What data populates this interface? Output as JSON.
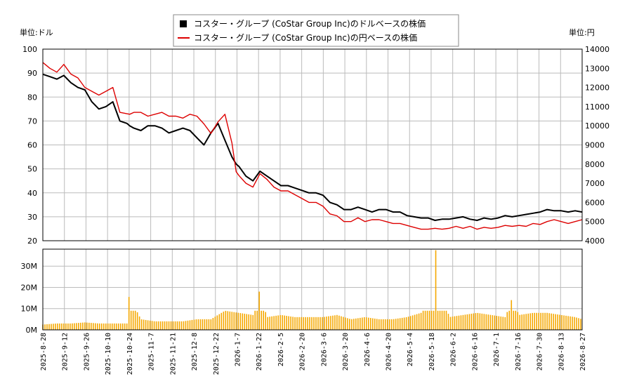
{
  "chart_data": {
    "type": "line",
    "legend": {
      "placement": "top-center",
      "usd_label": "コスター・グループ (CoStar Group Inc)のドルベースの株価",
      "jpy_label": "コスター・グループ (CoStar Group Inc)の円ベースの株価"
    },
    "left_unit_label": "単位:ドル",
    "right_unit_label": "単位:円",
    "price_ylim_usd": [
      20,
      100
    ],
    "price_ylim_jpy": [
      4000,
      14000
    ],
    "price_ticks_usd": [
      "20",
      "30",
      "40",
      "50",
      "60",
      "70",
      "80",
      "90",
      "100"
    ],
    "price_ticks_jpy": [
      "4000",
      "5000",
      "6000",
      "7000",
      "8000",
      "9000",
      "10000",
      "11000",
      "12000",
      "13000",
      "14000"
    ],
    "volume_ylim": [
      0,
      38
    ],
    "volume_ticks": [
      "0M",
      "10M",
      "20M",
      "30M"
    ],
    "x_tick_labels": [
      "2025-8-28",
      "2025-9-12",
      "2025-9-26",
      "2025-10-10",
      "2025-10-24",
      "2025-11-7",
      "2025-11-21",
      "2025-12-8",
      "2025-12-22",
      "2026-1-7",
      "2026-1-22",
      "2026-2-5",
      "2026-2-20",
      "2026-3-6",
      "2026-3-20",
      "2026-4-6",
      "2026-4-20",
      "2026-5-4",
      "2026-5-18",
      "2026-6-2",
      "2026-6-16",
      "2026-7-1",
      "2026-7-16",
      "2026-7-30",
      "2026-8-13",
      "2026-8-27"
    ],
    "grid": true,
    "colors": {
      "usd": "#000000",
      "jpy": "#dd0000",
      "volume": "#f5a800",
      "grid": "#bbbbbb"
    },
    "series": [
      {
        "key": "usd",
        "x": [
          0,
          5,
          10,
          15,
          20,
          25,
          30,
          35,
          40,
          45,
          50,
          55,
          60,
          62,
          65,
          70,
          75,
          80,
          85,
          90,
          95,
          100,
          105,
          110,
          115,
          120,
          125,
          130,
          135,
          138,
          140,
          145,
          150,
          155,
          160,
          165,
          170,
          175,
          180,
          185,
          190,
          195,
          200,
          205,
          210,
          215,
          220,
          225,
          230,
          235,
          240,
          245,
          250,
          255,
          260,
          265,
          270,
          275,
          280,
          285,
          290,
          295,
          300,
          305,
          310,
          315,
          320,
          325,
          330,
          335,
          340,
          345,
          350,
          355,
          360,
          365,
          370,
          375,
          380,
          385
        ],
        "values": [
          89.5,
          88.5,
          87.5,
          89,
          86,
          84,
          83,
          78,
          75,
          76,
          78,
          70,
          69,
          68,
          67,
          66,
          68,
          68,
          67,
          65,
          66,
          67,
          66,
          63,
          60,
          65,
          69,
          62,
          55,
          52,
          51,
          47,
          45,
          49,
          47,
          45,
          43,
          43,
          42,
          41,
          40,
          40,
          39,
          36,
          35,
          33,
          33,
          34,
          33,
          32,
          33,
          33,
          32,
          32,
          30.5,
          30,
          29.5,
          29.5,
          28.5,
          29,
          29,
          29.5,
          30,
          29,
          28.5,
          29.5,
          29,
          29.5,
          30.5,
          30,
          30.5,
          31,
          31.5,
          32,
          33,
          32.5,
          32.5,
          32,
          32.5,
          32
        ]
      },
      {
        "key": "jpy",
        "x": [
          0,
          5,
          10,
          15,
          20,
          25,
          30,
          35,
          40,
          45,
          50,
          55,
          62,
          65,
          70,
          75,
          80,
          85,
          90,
          95,
          100,
          105,
          110,
          115,
          120,
          125,
          130,
          135,
          138,
          140,
          145,
          150,
          155,
          160,
          165,
          170,
          175,
          180,
          185,
          190,
          195,
          200,
          205,
          210,
          215,
          220,
          225,
          230,
          235,
          240,
          245,
          250,
          255,
          260,
          265,
          270,
          275,
          280,
          285,
          290,
          295,
          300,
          305,
          310,
          315,
          320,
          325,
          330,
          335,
          340,
          345,
          350,
          355,
          360,
          365,
          370,
          375,
          380,
          385
        ],
        "values": [
          13300,
          13000,
          12800,
          13200,
          12700,
          12500,
          12000,
          11800,
          11600,
          11800,
          12000,
          10700,
          10600,
          10700,
          10700,
          10500,
          10600,
          10700,
          10500,
          10500,
          10400,
          10600,
          10500,
          10100,
          9600,
          10200,
          10600,
          9100,
          7600,
          7400,
          7000,
          6800,
          7500,
          7200,
          6800,
          6600,
          6600,
          6400,
          6200,
          6000,
          6000,
          5800,
          5400,
          5300,
          5000,
          5000,
          5200,
          5000,
          5100,
          5100,
          5000,
          4900,
          4900,
          4800,
          4700,
          4600,
          4600,
          4650,
          4600,
          4650,
          4750,
          4650,
          4750,
          4600,
          4700,
          4650,
          4700,
          4800,
          4750,
          4800,
          4750,
          4900,
          4850,
          5000,
          5100,
          5000,
          4900,
          5000,
          5100
        ]
      }
    ],
    "volume": {
      "x": [
        0,
        10,
        20,
        30,
        40,
        50,
        60,
        62,
        70,
        80,
        90,
        100,
        110,
        120,
        130,
        140,
        150,
        155,
        160,
        170,
        180,
        190,
        200,
        210,
        215,
        220,
        230,
        240,
        250,
        260,
        270,
        280,
        290,
        300,
        310,
        320,
        330,
        335,
        340,
        350,
        360,
        370,
        380,
        385
      ],
      "values": [
        2.5,
        3,
        3,
        3.5,
        3,
        3,
        3,
        15.5,
        5,
        4,
        4,
        4,
        5,
        5,
        9,
        8,
        7,
        18,
        6,
        7,
        6,
        6,
        6,
        7,
        6,
        5,
        6,
        5,
        5,
        6,
        8,
        37.5,
        6,
        7,
        8,
        7,
        6,
        14,
        7,
        8,
        8,
        7,
        6,
        5
      ]
    }
  }
}
